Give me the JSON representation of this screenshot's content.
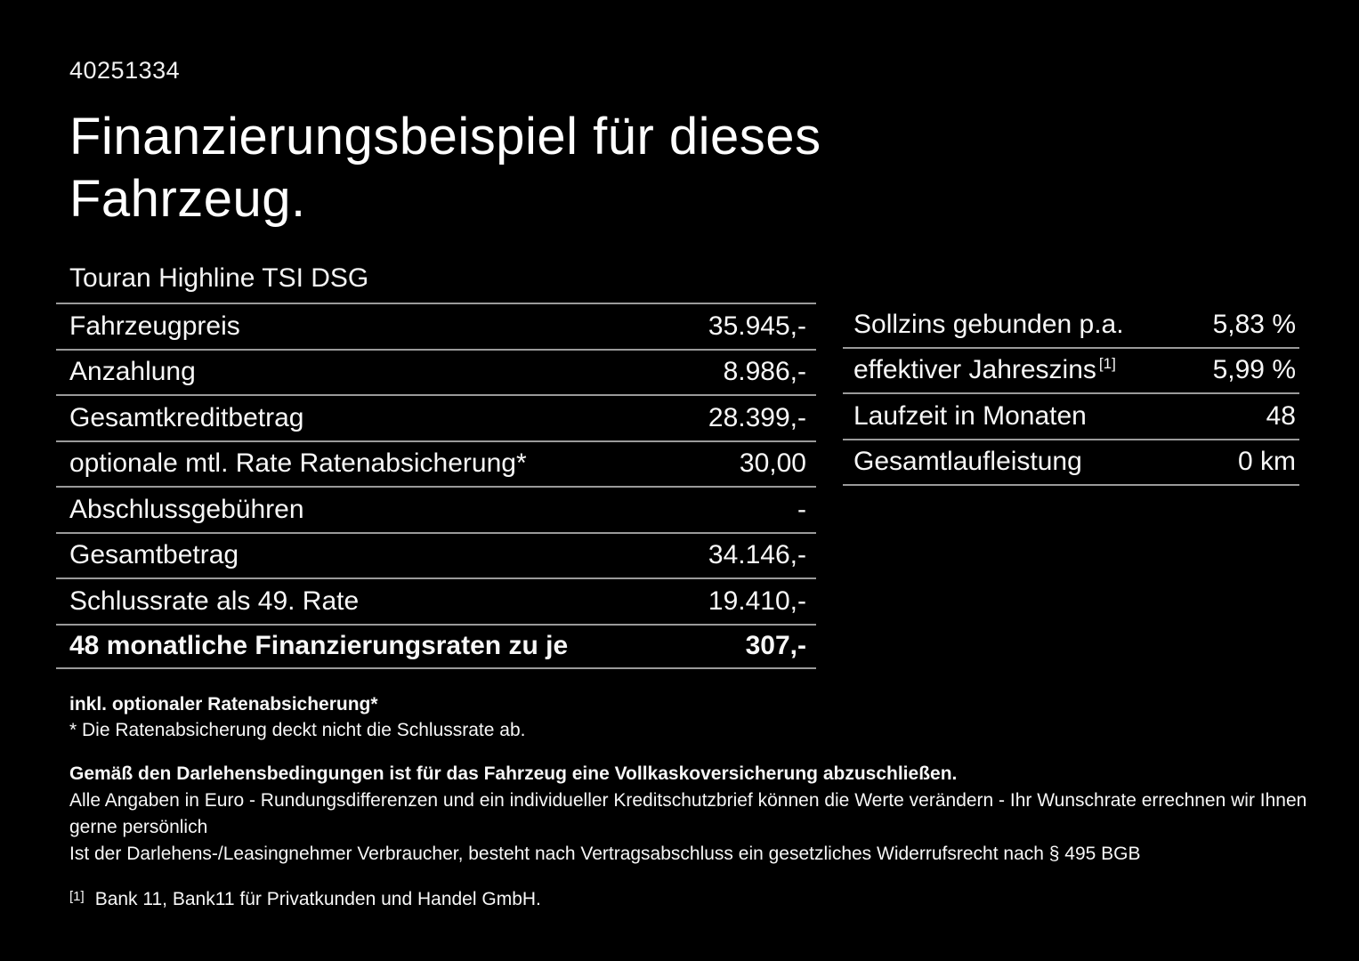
{
  "doc_id": "40251334",
  "title_line1": "Finanzierungsbeispiel für dieses",
  "title_line2": "Fahrzeug.",
  "vehicle_name": "Touran Highline TSI DSG",
  "left_table": {
    "rows": [
      {
        "label": "Fahrzeugpreis",
        "value": "35.945,-"
      },
      {
        "label": "Anzahlung",
        "value": "8.986,-"
      },
      {
        "label": "Gesamtkreditbetrag",
        "value": "28.399,-"
      },
      {
        "label": "optionale mtl. Rate Ratenabsicherung*",
        "value": "30,00"
      },
      {
        "label": "Abschlussgebühren",
        "value": "-"
      },
      {
        "label": "Gesamtbetrag",
        "value": "34.146,-"
      },
      {
        "label": "Schlussrate als 49. Rate",
        "value": "19.410,-"
      },
      {
        "label": "48 monatliche Finanzierungsraten zu je",
        "value": "307,-"
      }
    ]
  },
  "right_table": {
    "rows": [
      {
        "label": "Sollzins gebunden p.a.",
        "sup": "",
        "value": "5,83 %"
      },
      {
        "label": "effektiver Jahreszins",
        "sup": "[1]",
        "value": "5,99 %"
      },
      {
        "label": "Laufzeit in Monaten",
        "sup": "",
        "value": "48"
      },
      {
        "label": "Gesamtlaufleistung",
        "sup": "",
        "value": "0 km"
      }
    ]
  },
  "notes": {
    "incl_note": "inkl. optionaler Ratenabsicherung*",
    "asterisk_note": "* Die Ratenabsicherung deckt nicht die Schlussrate ab.",
    "insurance_note": "Gemäß den Darlehensbedingungen ist für das Fahrzeug eine Vollkaskoversicherung abzuschließen.",
    "disclaimer_line1": "Alle Angaben in Euro - Rundungsdifferenzen und ein individueller Kreditschutzbrief können die Werte verändern - Ihr Wunschrate errechnen wir Ihnen gerne persönlich",
    "disclaimer_line2": "Ist der Darlehens-/Leasingnehmer Verbraucher, besteht nach Vertragsabschluss ein gesetzliches Widerrufsrecht nach § 495 BGB",
    "footnote_marker": "[1]",
    "footnote_text": "Bank 11, Bank11 für Privatkunden und Handel GmbH."
  },
  "colors": {
    "background": "#000000",
    "text": "#f7f7f7",
    "divider": "#9a9a9a"
  }
}
